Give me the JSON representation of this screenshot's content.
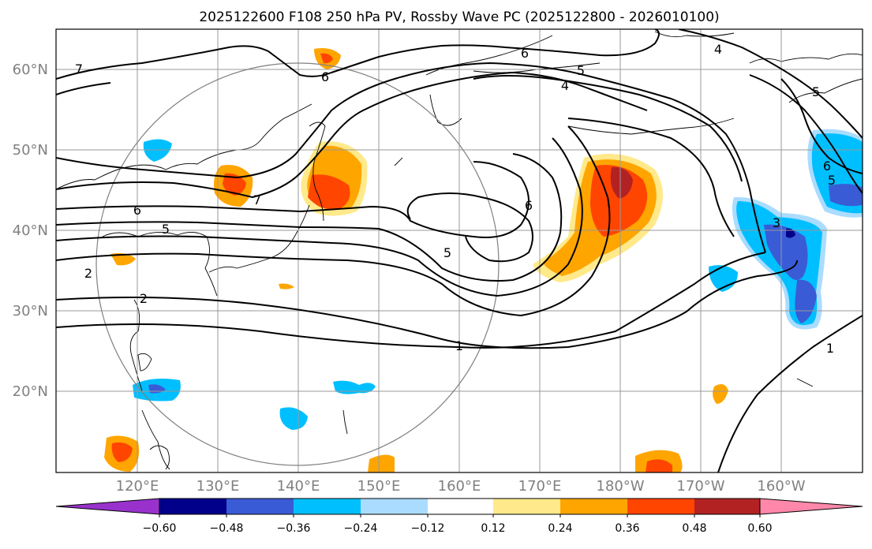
{
  "title": "2025122600 F108 250 hPa PV, Rossby Wave PC (2025122800 - 2026010100)",
  "map": {
    "lon_labels": [
      "120°E",
      "130°E",
      "140°E",
      "150°E",
      "160°E",
      "170°E",
      "180°W",
      "170°W",
      "160°W"
    ],
    "lat_labels": [
      "60°N",
      "50°N",
      "40°N",
      "30°N",
      "20°N"
    ],
    "contour_labels": [
      "7",
      "6",
      "5",
      "4",
      "6",
      "5",
      "4",
      "6",
      "5",
      "7",
      "6",
      "5",
      "2",
      "1",
      "3",
      "1",
      "6",
      "5",
      "2"
    ]
  },
  "colorbar": {
    "tick_labels": [
      "−0.60",
      "−0.48",
      "−0.36",
      "−0.24",
      "−0.12",
      "0.12",
      "0.24",
      "0.36",
      "0.48",
      "0.60"
    ],
    "colors": [
      "#9932cc",
      "#00008b",
      "#3a5bd6",
      "#00bfff",
      "#aadcff",
      "#ffffff",
      "#ffe98a",
      "#ffa500",
      "#ff4500",
      "#b22222",
      "#ff88aa"
    ]
  },
  "colors": {
    "ocean": "#ffffff",
    "contour": "#000000",
    "grid": "#999999",
    "axis_label": "#808080",
    "circle": "#808080"
  }
}
